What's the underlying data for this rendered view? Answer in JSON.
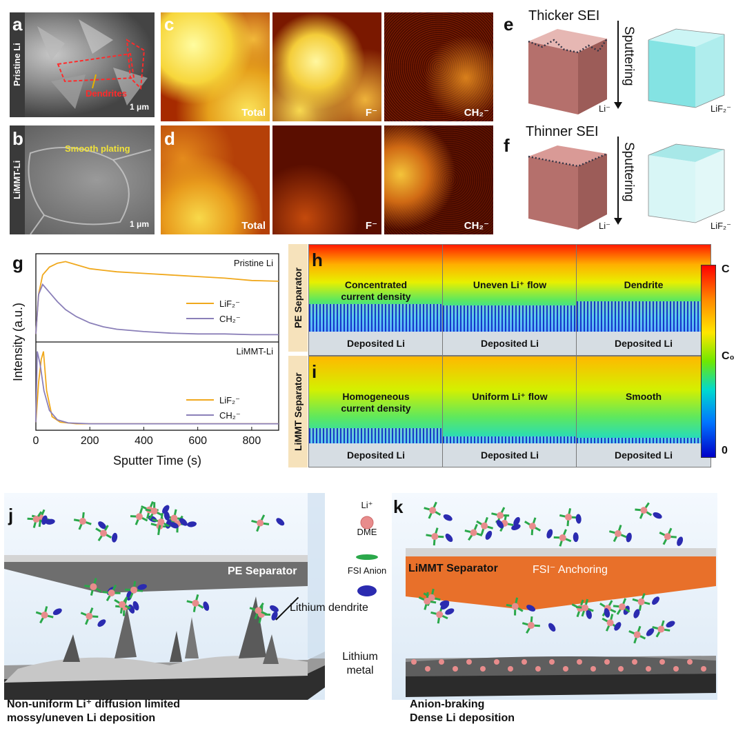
{
  "panels": {
    "a": {
      "letter": "a",
      "side_tag": "Pristine Li",
      "annotation": "Dendrites",
      "scale": "1 μm"
    },
    "b": {
      "letter": "b",
      "side_tag": "LiMMT-Li",
      "annotation": "Smooth plating",
      "scale": "1 μm"
    },
    "c": {
      "letter": "c",
      "maps": [
        "Total",
        "F⁻",
        "CH₂⁻"
      ]
    },
    "d": {
      "letter": "d",
      "maps": [
        "Total",
        "F⁻",
        "CH₂⁻"
      ]
    },
    "e": {
      "letter": "e",
      "title": "Thicker SEI",
      "arrow_label": "Sputtering",
      "left_ion": "Li⁻",
      "right_ion": "LiF₂⁻"
    },
    "f": {
      "letter": "f",
      "title": "Thinner SEI",
      "arrow_label": "Sputtering",
      "left_ion": "Li⁻",
      "right_ion": "LiF₂⁻"
    },
    "g": {
      "letter": "g"
    },
    "h": {
      "letter": "h",
      "side_tag": "PE Separator",
      "frames": [
        {
          "text": "Concentrated current density",
          "base": "Deposited Li"
        },
        {
          "text": "Uneven Li⁺ flow",
          "base": "Deposited Li"
        },
        {
          "text": "Dendrite",
          "base": "Deposited Li"
        }
      ]
    },
    "i": {
      "letter": "i",
      "side_tag": "LiMMT Separator",
      "frames": [
        {
          "text": "Homogeneous current density",
          "base": "Deposited Li"
        },
        {
          "text": "Uniform Li⁺ flow",
          "base": "Deposited Li"
        },
        {
          "text": "Smooth",
          "base": "Deposited Li"
        }
      ]
    },
    "colorbar": {
      "top": "C",
      "mid": "C₀",
      "bottom": "0"
    },
    "j": {
      "letter": "j",
      "separator": "PE Separator",
      "dendrite_label": "Lithium dendrite",
      "metal_label": "Lithium metal",
      "caption_line1": "Non-uniform Li⁺ diffusion limited",
      "caption_line2": "mossy/uneven Li deposition"
    },
    "k": {
      "letter": "k",
      "separator": "LiMMT Separator",
      "anchoring": "FSI⁻ Anchoring",
      "caption_line1": "Anion-braking",
      "caption_line2": "Dense Li deposition"
    },
    "legend": {
      "li": "Li⁺",
      "dme": "DME",
      "fsi": "FSI Anion"
    }
  },
  "chart_data": {
    "type": "line",
    "xlabel": "Sputter Time (s)",
    "ylabel": "Intensity (a.u.)",
    "xlim": [
      0,
      900
    ],
    "xticks": [
      0,
      200,
      400,
      600,
      800
    ],
    "subplots": [
      {
        "title": "Pristine Li",
        "series": [
          {
            "name": "LiF₂⁻",
            "color": "#f0a81c",
            "x": [
              0,
              10,
              25,
              50,
              80,
              110,
              150,
              200,
              250,
              300,
              400,
              500,
              600,
              700,
              800,
              900
            ],
            "y": [
              0.05,
              0.55,
              0.8,
              0.9,
              0.95,
              0.97,
              0.93,
              0.88,
              0.86,
              0.84,
              0.82,
              0.8,
              0.78,
              0.76,
              0.73,
              0.72
            ]
          },
          {
            "name": "CH₂⁻",
            "color": "#8a7fb8",
            "x": [
              0,
              10,
              25,
              50,
              80,
              110,
              150,
              200,
              250,
              300,
              400,
              500,
              600,
              700,
              800,
              900
            ],
            "y": [
              0.05,
              0.55,
              0.68,
              0.58,
              0.46,
              0.36,
              0.27,
              0.19,
              0.14,
              0.11,
              0.08,
              0.06,
              0.05,
              0.05,
              0.04,
              0.04
            ]
          }
        ]
      },
      {
        "title": "LiMMT-Li",
        "series": [
          {
            "name": "LiF₂⁻",
            "color": "#f0a81c",
            "x": [
              0,
              10,
              20,
              28,
              40,
              60,
              90,
              150,
              250,
              400,
              600,
              800,
              900
            ],
            "y": [
              0.05,
              0.55,
              0.85,
              0.95,
              0.45,
              0.12,
              0.05,
              0.03,
              0.03,
              0.03,
              0.03,
              0.03,
              0.03
            ]
          },
          {
            "name": "CH₂⁻",
            "color": "#8a7fb8",
            "x": [
              0,
              5,
              15,
              30,
              50,
              80,
              120,
              200,
              400,
              600,
              800,
              900
            ],
            "y": [
              0.05,
              0.95,
              0.8,
              0.45,
              0.2,
              0.08,
              0.04,
              0.03,
              0.03,
              0.03,
              0.03,
              0.03
            ]
          }
        ]
      }
    ]
  }
}
